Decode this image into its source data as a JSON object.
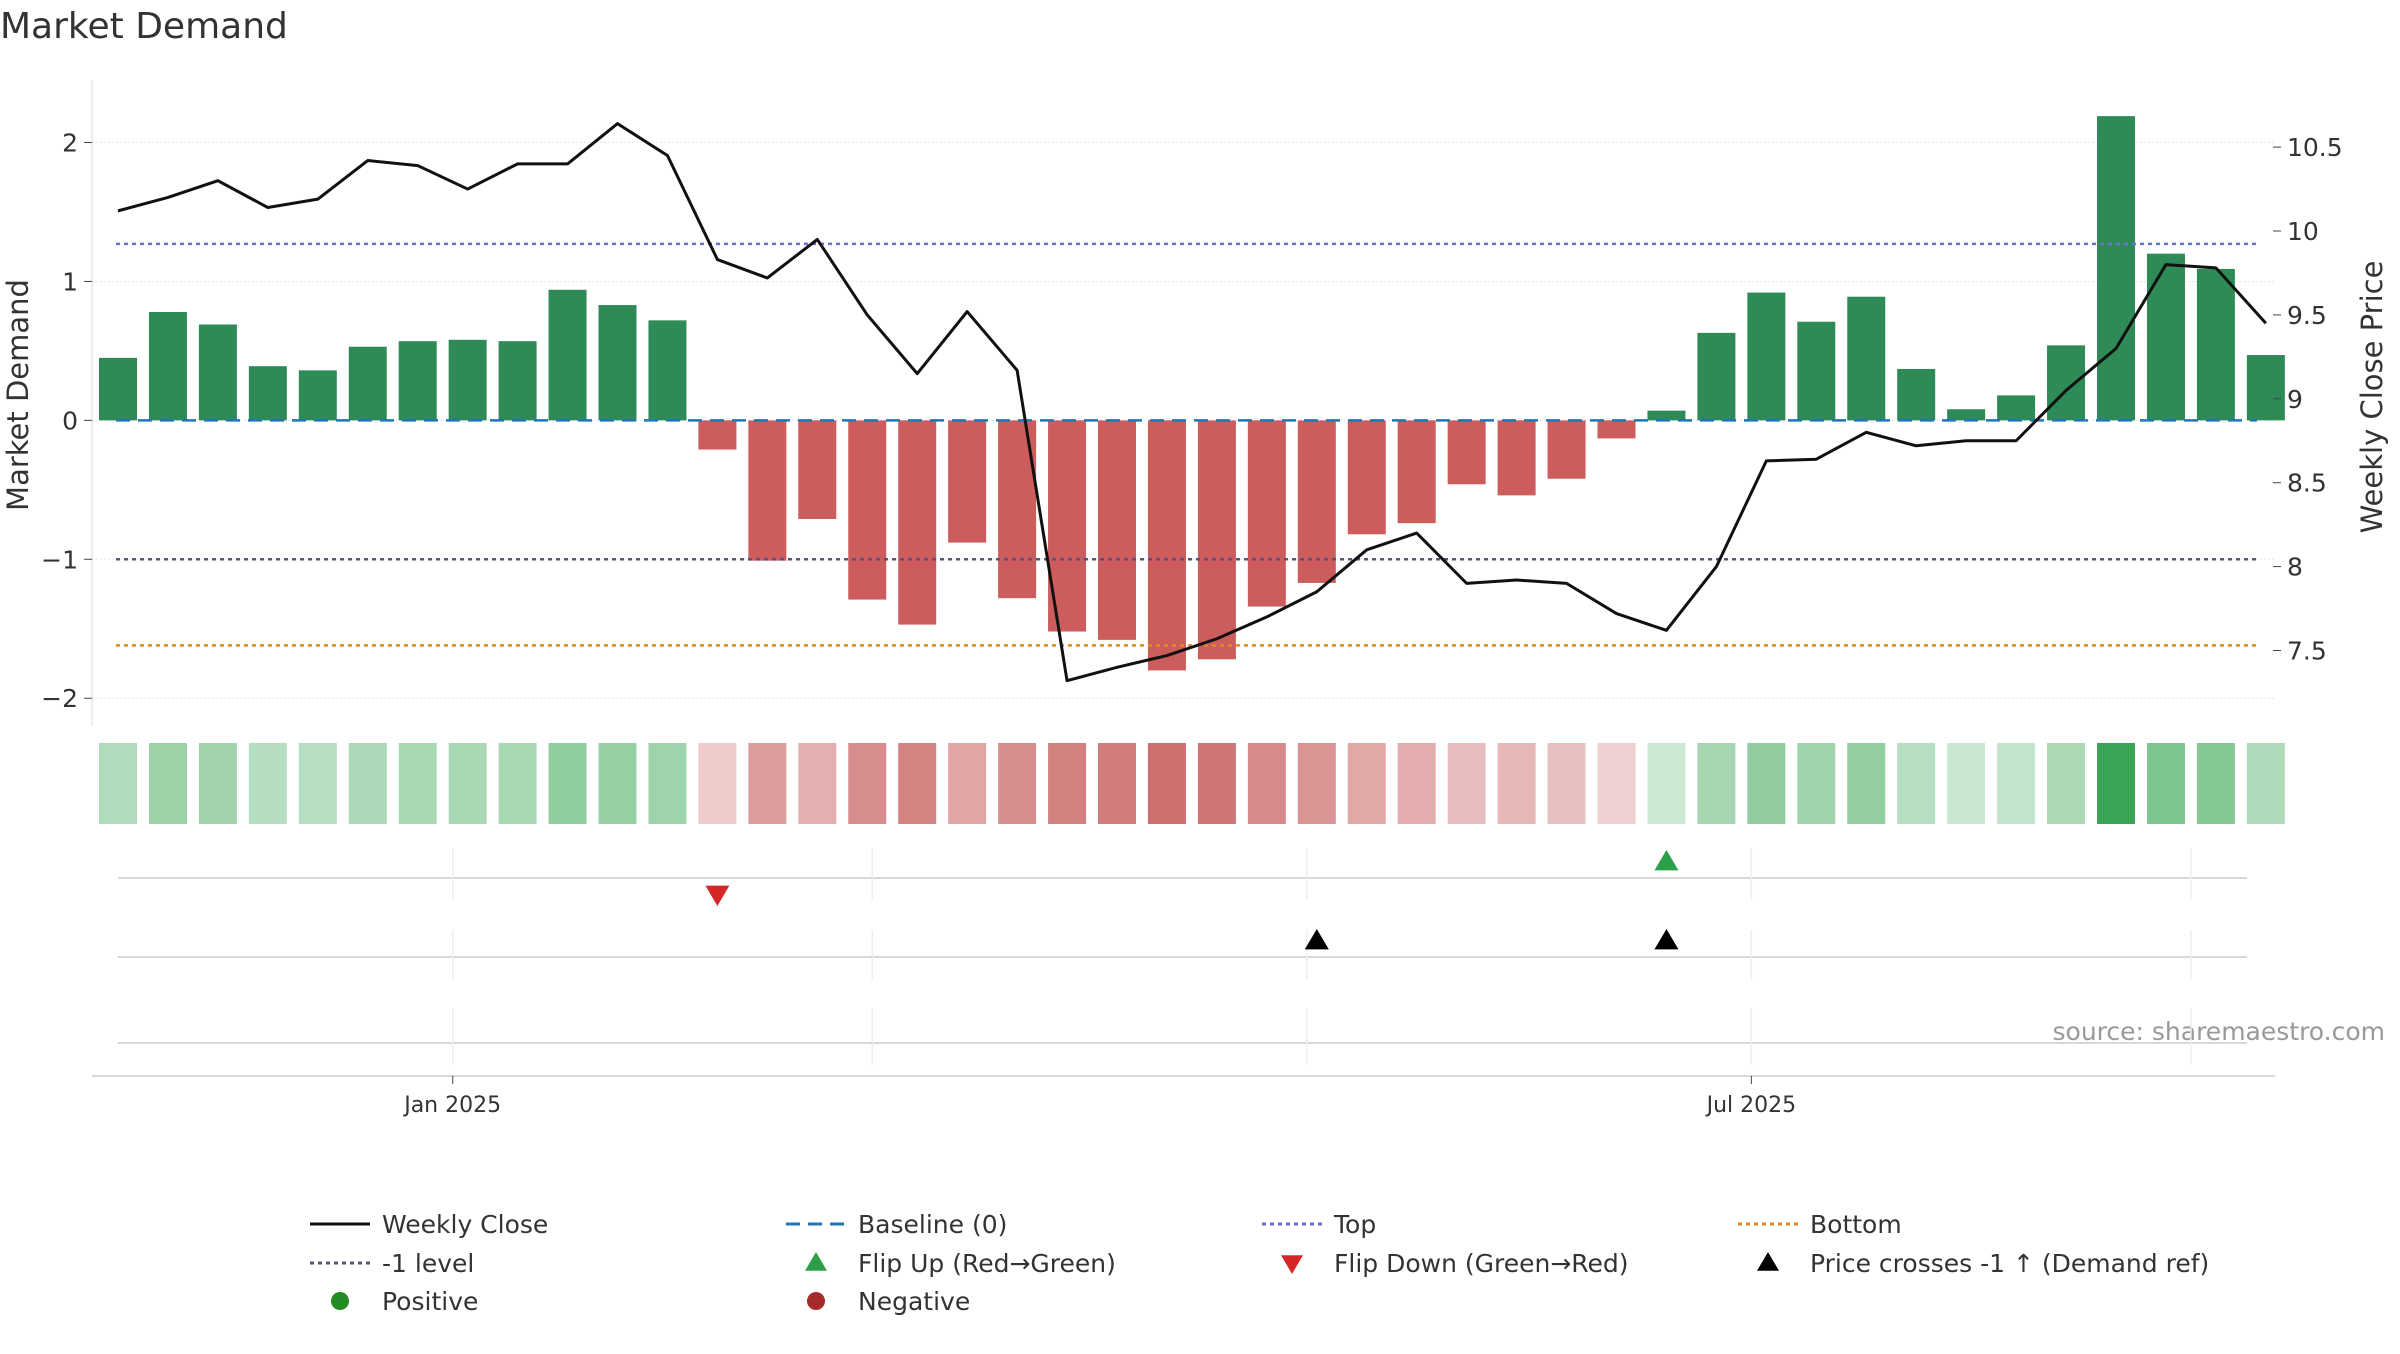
{
  "chart_data": {
    "type": "bar",
    "title": "Market Demand",
    "ylabel_left": "Market Demand",
    "ylabel_right": "Weekly Close Price",
    "source": "source: sharemaestro.com",
    "left_ylim": [
      -2.2,
      2.45
    ],
    "left_ticks": [
      2,
      1,
      0,
      -1,
      -2
    ],
    "left_tick_labels": [
      "2",
      "1",
      "0",
      "−1",
      "−2"
    ],
    "right_ylim": [
      7.05,
      10.9
    ],
    "right_ticks": [
      10.5,
      10,
      9.5,
      9,
      8.5,
      8,
      7.5
    ],
    "right_tick_labels": [
      "10.5",
      "10",
      "9.5",
      "9",
      "8.5",
      "8",
      "7.5"
    ],
    "x_tick_labels": [
      {
        "label": "Jan 2025",
        "week": 6.7
      },
      {
        "label": "Jul 2025",
        "week": 32.7
      }
    ],
    "weeks": 44,
    "demand": [
      0.45,
      0.78,
      0.69,
      0.39,
      0.36,
      0.53,
      0.57,
      0.58,
      0.57,
      0.94,
      0.83,
      0.72,
      -0.21,
      -1.01,
      -0.71,
      -1.29,
      -1.47,
      -0.88,
      -1.28,
      -1.52,
      -1.58,
      -1.8,
      -1.72,
      -1.34,
      -1.17,
      -0.82,
      -0.74,
      -0.46,
      -0.54,
      -0.42,
      -0.13,
      0.07,
      0.63,
      0.92,
      0.71,
      0.89,
      0.37,
      0.08,
      0.18,
      0.54,
      2.19,
      1.2,
      1.09,
      0.47
    ],
    "close": [
      10.12,
      10.2,
      10.3,
      10.14,
      10.19,
      10.42,
      10.39,
      10.25,
      10.4,
      10.4,
      10.64,
      10.45,
      9.83,
      9.72,
      9.95,
      9.5,
      9.15,
      9.52,
      9.17,
      7.32,
      7.4,
      7.47,
      7.57,
      7.7,
      7.85,
      8.1,
      8.2,
      7.9,
      7.92,
      7.9,
      7.72,
      7.62,
      8.0,
      8.63,
      8.64,
      8.8,
      8.72,
      8.75,
      8.75,
      9.05,
      9.3,
      9.8,
      9.78,
      9.45
    ],
    "reference_lines": [
      {
        "name": "Baseline (0)",
        "value": 0,
        "color": "#1f77b4",
        "style": "dashed"
      },
      {
        "name": "Top",
        "value": 1.27,
        "color": "#6a6fd0",
        "style": "dotted"
      },
      {
        "name": "-1 level",
        "value": -1,
        "color": "#555577",
        "style": "dotted"
      },
      {
        "name": "Bottom",
        "value": -1.62,
        "color": "#e08a1e",
        "style": "dotted"
      }
    ],
    "flip_up_weeks": [
      31
    ],
    "flip_down_weeks": [
      12
    ],
    "price_cross_weeks": [
      24,
      31
    ],
    "colors": {
      "positive": "#2e8b57",
      "negative": "#cd5c5c",
      "close_line": "#111111",
      "heat_pos": "#3aa655",
      "heat_neg": "#c65a5a",
      "flip_up": "#2ca048",
      "flip_down": "#d62728",
      "cross": "#000000",
      "legend_positive": "#228b22",
      "legend_negative": "#a52a2a"
    },
    "legend": [
      {
        "label": "Weekly Close",
        "kind": "line",
        "color": "#111111",
        "dash": ""
      },
      {
        "label": "Baseline (0)",
        "kind": "line",
        "color": "#1f77b4",
        "dash": "14,8"
      },
      {
        "label": "Top",
        "kind": "line",
        "color": "#6a6fd0",
        "dash": "4,4"
      },
      {
        "label": "Bottom",
        "kind": "line",
        "color": "#e08a1e",
        "dash": "4,4"
      },
      {
        "label": "-1 level",
        "kind": "line",
        "color": "#555577",
        "dash": "4,4"
      },
      {
        "label": "Flip Up (Red→Green)",
        "kind": "tri-up",
        "color": "#2ca048"
      },
      {
        "label": "Flip Down (Green→Red)",
        "kind": "tri-down",
        "color": "#d62728"
      },
      {
        "label": "Price crosses -1 ↑ (Demand ref)",
        "kind": "tri-up",
        "color": "#000000"
      },
      {
        "label": "Positive",
        "kind": "dot",
        "color": "#228b22"
      },
      {
        "label": "Negative",
        "kind": "dot",
        "color": "#a52a2a"
      }
    ]
  }
}
